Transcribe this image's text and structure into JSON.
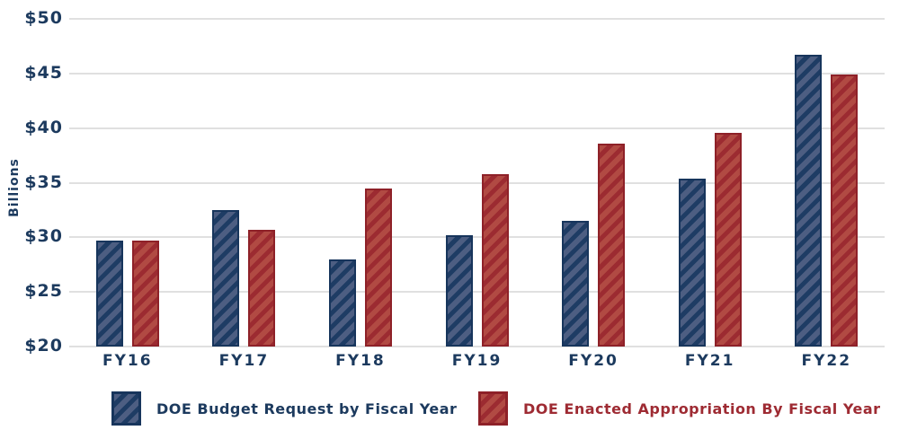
{
  "page": {
    "background": "#ffffff"
  },
  "chart_data": {
    "type": "bar",
    "title": "",
    "xlabel": "",
    "ylabel": "Billions",
    "categories": [
      "FY16",
      "FY17",
      "FY18",
      "FY19",
      "FY20",
      "FY21",
      "FY22"
    ],
    "series": [
      {
        "name": "DOE Budget Request by Fiscal Year",
        "values": [
          29.7,
          32.5,
          28.0,
          30.2,
          31.5,
          35.4,
          46.7
        ],
        "fill_dark": "#1e3c64",
        "fill_light": "#4d5e82",
        "border": "#17355c",
        "label_color": "#1c3a5e"
      },
      {
        "name": "DOE Enacted Appropriation By Fiscal Year",
        "values": [
          29.7,
          30.7,
          34.5,
          35.8,
          38.6,
          39.6,
          44.9
        ],
        "fill_dark": "#9c2b31",
        "fill_light": "#b14a43",
        "border": "#8e2128",
        "label_color": "#9e2b33"
      }
    ],
    "ylim": [
      20,
      50
    ],
    "ytick_step": 5,
    "ytick_labels": [
      "$50",
      "$45",
      "$40",
      "$35",
      "$30",
      "$25",
      "$20"
    ],
    "units": "$ billions",
    "grid": true,
    "gridline_color": "#e0e0e0",
    "hatch": "diagonal-forward",
    "legend_position": "bottom"
  }
}
